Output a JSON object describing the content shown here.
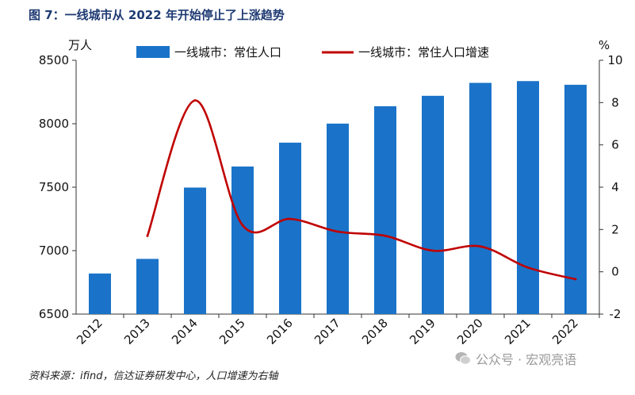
{
  "page": {
    "title": "图 7：一线城市从 2022 年开始停止了上涨趋势",
    "source": "资料来源：ifind，信达证券研发中心，人口增速为右轴",
    "watermark": "公众号 · 宏观亮语"
  },
  "chart_data": {
    "type": "bar",
    "title": "一线城市从 2022 年开始停止了上涨趋势",
    "categories": [
      "2012",
      "2013",
      "2014",
      "2015",
      "2016",
      "2017",
      "2018",
      "2019",
      "2020",
      "2021",
      "2022"
    ],
    "series": [
      {
        "name": "一线城市：常住人口",
        "type": "bar",
        "axis": "left",
        "color": "#1a73c8",
        "values": [
          6820,
          6935,
          7497,
          7663,
          7851,
          8001,
          8138,
          8220,
          8322,
          8336,
          8307
        ]
      },
      {
        "name": "一线城市：常住人口增速",
        "type": "line",
        "axis": "right",
        "color": "#c00000",
        "values": [
          null,
          1.7,
          8.1,
          2.2,
          2.5,
          1.9,
          1.7,
          1.0,
          1.2,
          0.2,
          -0.35
        ]
      }
    ],
    "left_axis": {
      "unit": "万人",
      "ylim": [
        6500,
        8500
      ],
      "ticks": [
        6500,
        7000,
        7500,
        8000,
        8500
      ]
    },
    "right_axis": {
      "unit": "%",
      "ylim": [
        -2,
        10
      ],
      "ticks": [
        -2,
        0,
        2,
        4,
        6,
        8,
        10
      ]
    },
    "legend": "top"
  }
}
